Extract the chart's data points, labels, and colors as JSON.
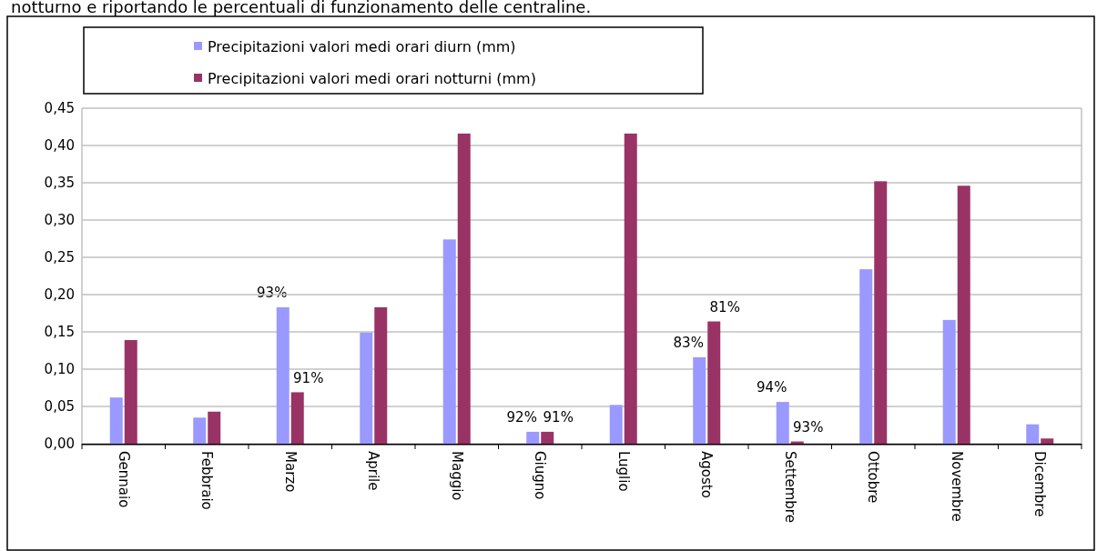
{
  "chart_data": {
    "type": "bar",
    "annotations": [
      "notturno e riportando le percentuali di funzionamento delle centraline.",
      {
        "text": "93%",
        "x": "Marzo",
        "y": 0.183
      },
      {
        "text": "91%",
        "x": "Marzo",
        "y": 0.069
      },
      {
        "text": "92%",
        "x": "Giugno",
        "y": 0.016
      },
      {
        "text": "91%",
        "x": "Giugno",
        "y": 0.016
      },
      {
        "text": "83%",
        "x": "Agosto",
        "y": 0.116
      },
      {
        "text": "81%",
        "x": "Agosto",
        "y": 0.164
      },
      {
        "text": "94%",
        "x": "Settembre",
        "y": 0.056
      },
      {
        "text": "93%",
        "x": "Settembre",
        "y": 0.003
      }
    ],
    "categories": [
      "Gennaio",
      "Febbraio",
      "Marzo",
      "Aprile",
      "Maggio",
      "Giugno",
      "Luglio",
      "Agosto",
      "Settembre",
      "Ottobre",
      "Novembre",
      "Dicembre"
    ],
    "series": [
      {
        "name": "Precipitazioni valori medi orari diurn (mm)",
        "color": "#9999ff",
        "values": [
          0.062,
          0.035,
          0.183,
          0.149,
          0.274,
          0.016,
          0.052,
          0.116,
          0.056,
          0.234,
          0.166,
          0.026
        ]
      },
      {
        "name": "Precipitazioni valori medi orari notturni (mm)",
        "color": "#993366",
        "values": [
          0.139,
          0.043,
          0.069,
          0.183,
          0.416,
          0.016,
          0.416,
          0.164,
          0.003,
          0.352,
          0.346,
          0.007
        ]
      }
    ],
    "ylim": [
      0,
      0.45
    ],
    "yticks": [
      {
        "value": 0,
        "label": "0,00"
      },
      {
        "value": 0.05,
        "label": "0,05"
      },
      {
        "value": 0.1,
        "label": "0,10"
      },
      {
        "value": 0.15,
        "label": "0,15"
      },
      {
        "value": 0.2,
        "label": "0,20"
      },
      {
        "value": 0.25,
        "label": "0,25"
      },
      {
        "value": 0.3,
        "label": "0,30"
      },
      {
        "value": 0.35,
        "label": "0,35"
      },
      {
        "value": 0.4,
        "label": "0,40"
      },
      {
        "value": 0.45,
        "label": "0,45"
      }
    ],
    "grid": "y",
    "legend": "top"
  }
}
